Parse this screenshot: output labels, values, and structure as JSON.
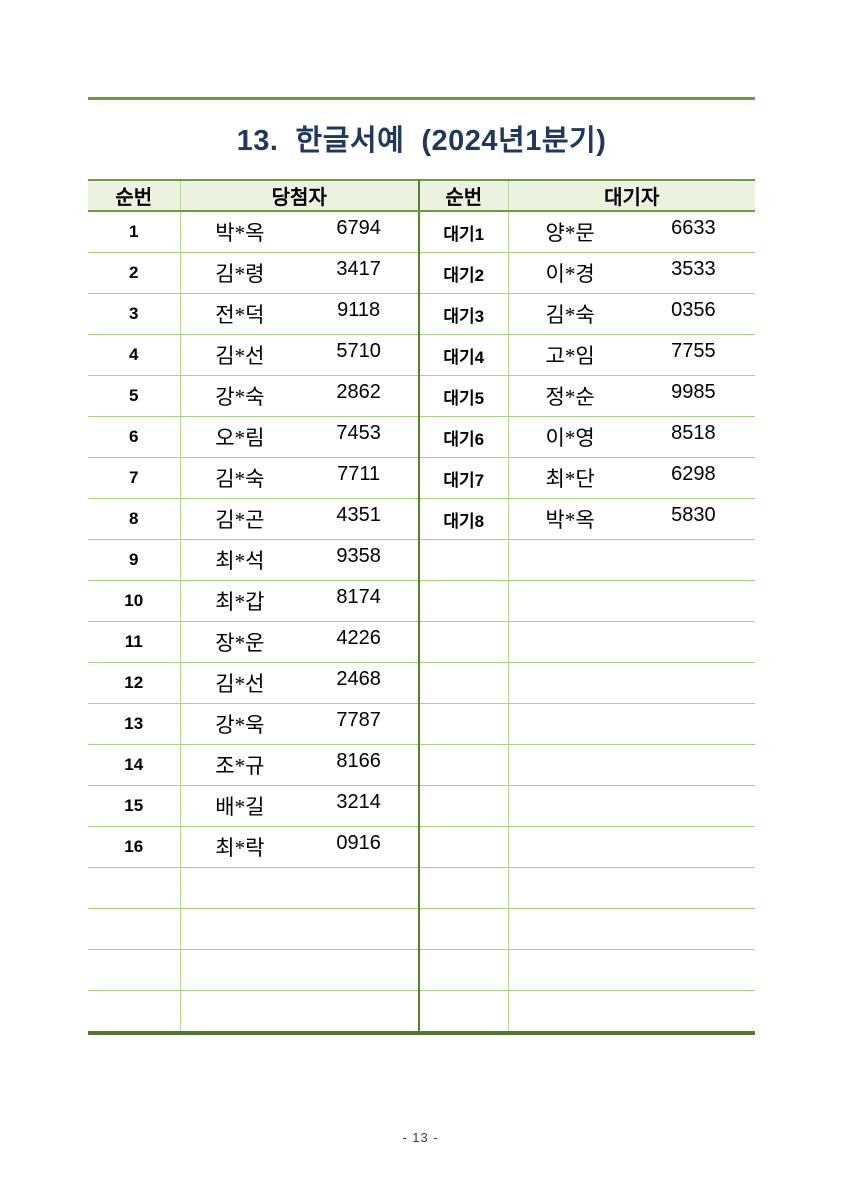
{
  "page": {
    "title": "13.  한글서예  (2024년1분기)",
    "footer": "- 13 -"
  },
  "colors": {
    "rule_green": "#6d9b47",
    "divider_light_green": "#a9d186",
    "divider_dark_green": "#55802f",
    "header_bg": "#ecf2e0",
    "title_navy": "#20385c"
  },
  "table": {
    "headers": [
      "순번",
      "당첨자",
      "순번",
      "대기자"
    ],
    "total_rows": 20,
    "winners": [
      {
        "no": "1",
        "name": "박*옥",
        "num": "6794"
      },
      {
        "no": "2",
        "name": "김*령",
        "num": "3417"
      },
      {
        "no": "3",
        "name": "전*덕",
        "num": "9118"
      },
      {
        "no": "4",
        "name": "김*선",
        "num": "5710"
      },
      {
        "no": "5",
        "name": "강*숙",
        "num": "2862"
      },
      {
        "no": "6",
        "name": "오*림",
        "num": "7453"
      },
      {
        "no": "7",
        "name": "김*숙",
        "num": "7711"
      },
      {
        "no": "8",
        "name": "김*곤",
        "num": "4351"
      },
      {
        "no": "9",
        "name": "최*석",
        "num": "9358"
      },
      {
        "no": "10",
        "name": "최*갑",
        "num": "8174"
      },
      {
        "no": "11",
        "name": "장*운",
        "num": "4226"
      },
      {
        "no": "12",
        "name": "김*선",
        "num": "2468"
      },
      {
        "no": "13",
        "name": "강*욱",
        "num": "7787"
      },
      {
        "no": "14",
        "name": "조*규",
        "num": "8166"
      },
      {
        "no": "15",
        "name": "배*길",
        "num": "3214"
      },
      {
        "no": "16",
        "name": "최*락",
        "num": "0916"
      }
    ],
    "waitlist": [
      {
        "no": "대기1",
        "name": "양*문",
        "num": "6633"
      },
      {
        "no": "대기2",
        "name": "이*경",
        "num": "3533"
      },
      {
        "no": "대기3",
        "name": "김*숙",
        "num": "0356"
      },
      {
        "no": "대기4",
        "name": "고*임",
        "num": "7755"
      },
      {
        "no": "대기5",
        "name": "정*순",
        "num": "9985"
      },
      {
        "no": "대기6",
        "name": "이*영",
        "num": "8518"
      },
      {
        "no": "대기7",
        "name": "최*단",
        "num": "6298"
      },
      {
        "no": "대기8",
        "name": "박*옥",
        "num": "5830"
      }
    ]
  }
}
